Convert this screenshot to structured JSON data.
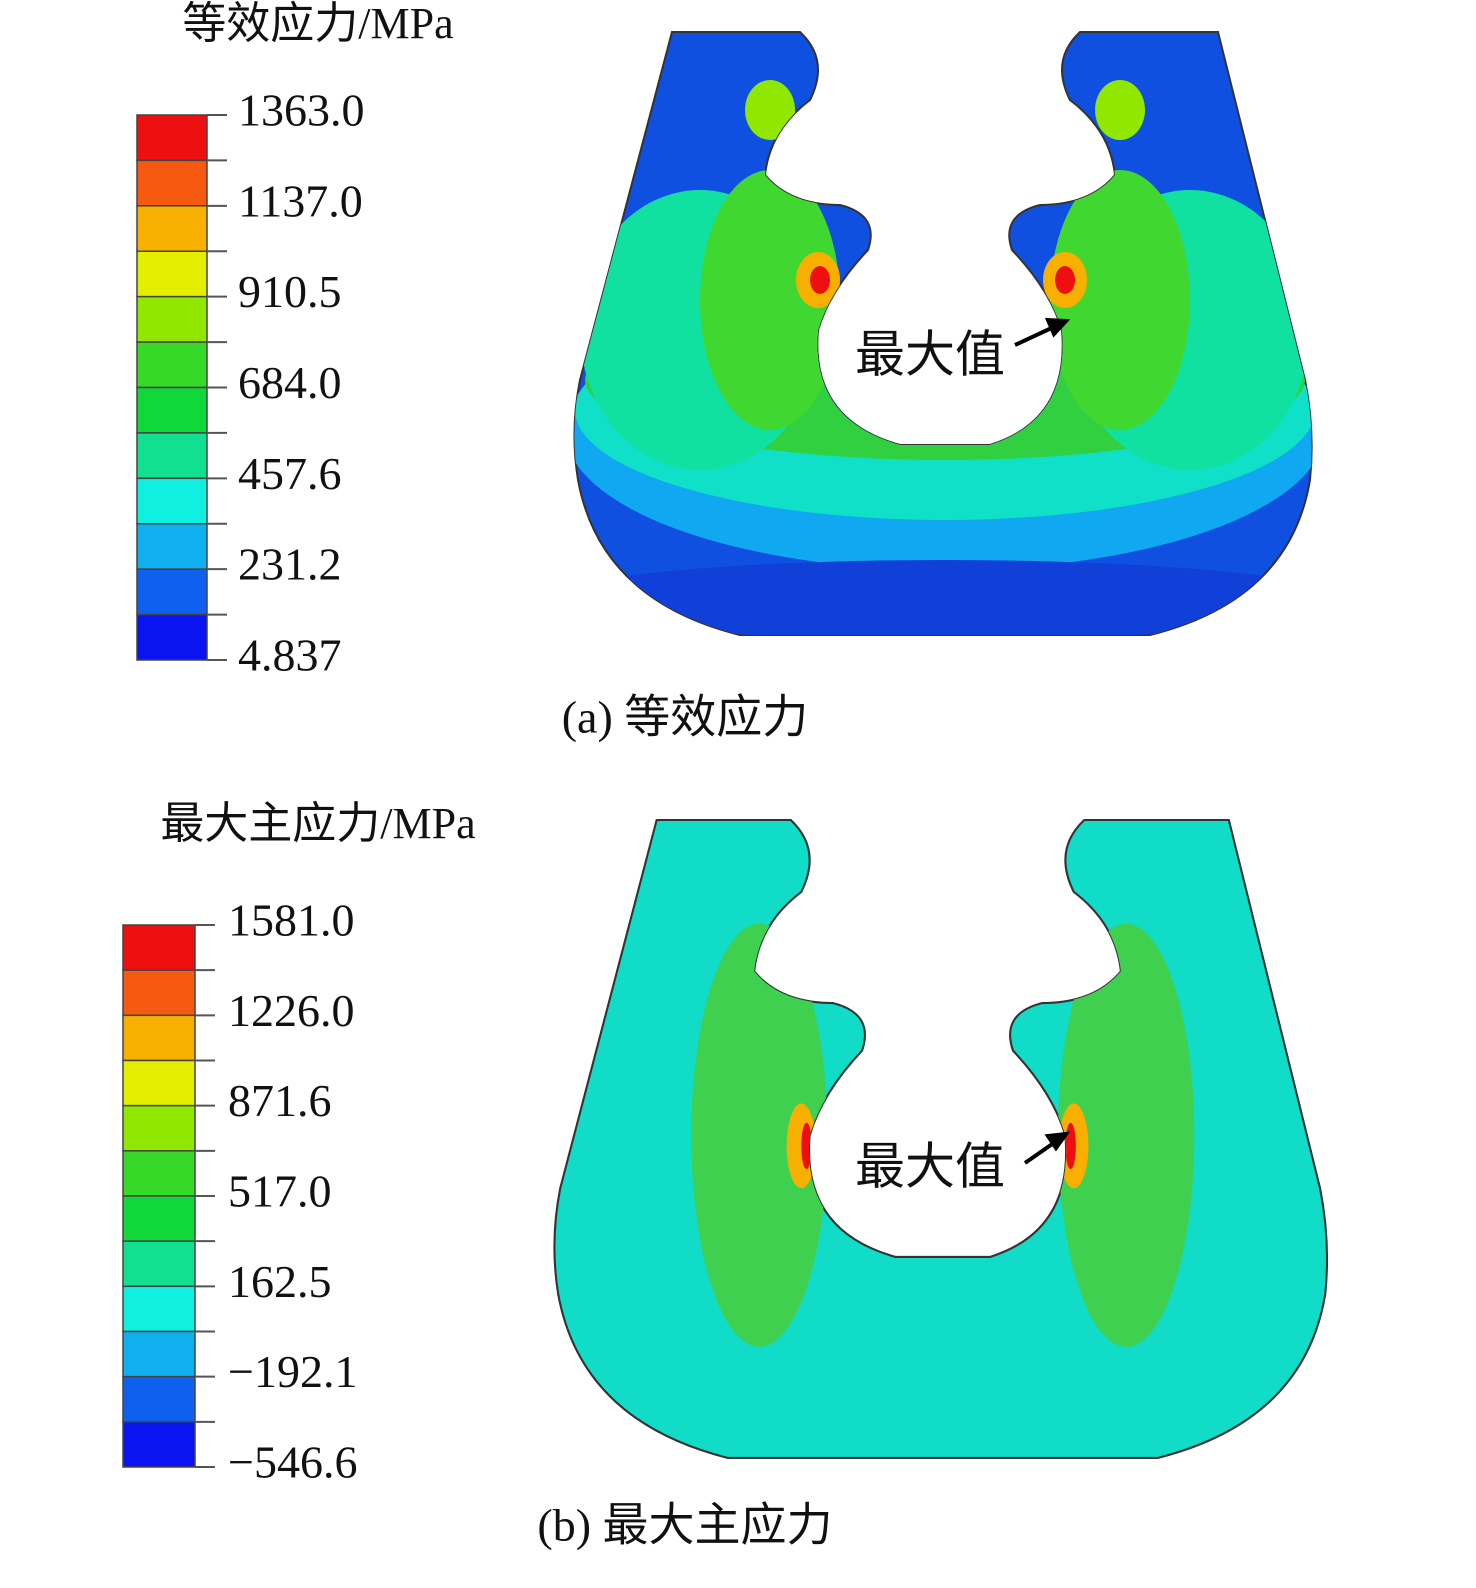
{
  "panels": [
    {
      "legend": {
        "title": "等效应力/MPa",
        "labels": [
          "1363.0",
          "1137.0",
          "910.5",
          "684.0",
          "457.6",
          "231.2",
          "4.837"
        ],
        "colors": [
          "#ee1010",
          "#f55a10",
          "#f8b000",
          "#e4ee00",
          "#90e800",
          "#38d828",
          "#10d838",
          "#10e090",
          "#10f0e0",
          "#10b0f0",
          "#1060f0",
          "#0a14f0"
        ]
      },
      "annotation": "最大值",
      "caption": "(a) 等效应力"
    },
    {
      "legend": {
        "title": "最大主应力/MPa",
        "labels": [
          "1581.0",
          "1226.0",
          "871.6",
          "517.0",
          "162.5",
          "−192.1",
          "−546.6"
        ],
        "colors": [
          "#ee1010",
          "#f55a10",
          "#f8b000",
          "#e4ee00",
          "#90e800",
          "#38d828",
          "#10d838",
          "#10e090",
          "#10f0e0",
          "#10b0f0",
          "#1060f0",
          "#0a14f0"
        ]
      },
      "annotation": "最大值",
      "caption": "(b) 最大主应力"
    }
  ]
}
